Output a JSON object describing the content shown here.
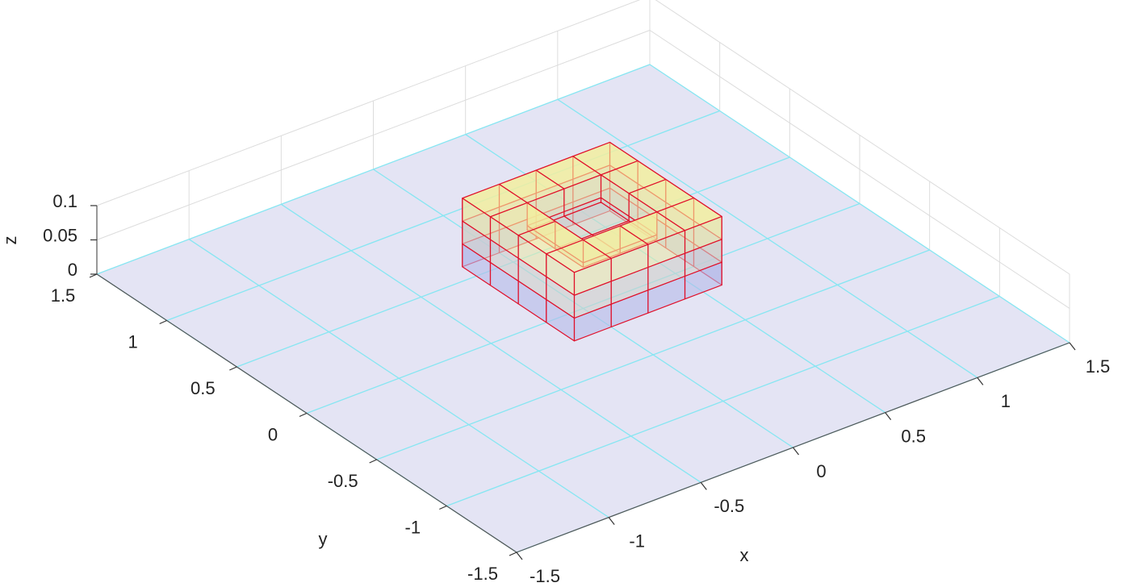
{
  "chart_data": {
    "type": "surface3d",
    "xlabel": "x",
    "ylabel": "y",
    "zlabel": "z",
    "xlim": [
      -1.5,
      1.5
    ],
    "ylim": [
      -1.5,
      1.5
    ],
    "zlim": [
      0,
      0.1
    ],
    "xticks": [
      -1.5,
      -1,
      -0.5,
      0,
      0.5,
      1,
      1.5
    ],
    "yticks": [
      -1.5,
      -1,
      -0.5,
      0,
      0.5,
      1,
      1.5
    ],
    "zticks": [
      0,
      0.05,
      0.1
    ],
    "grid": true,
    "plate": {
      "x": [
        -1.5,
        -1,
        -0.5,
        0,
        0.5,
        1,
        1.5
      ],
      "y": [
        -1.5,
        -1,
        -0.5,
        0,
        0.5,
        1,
        1.5
      ],
      "z": 0,
      "color": "#e4e4f4",
      "edge_color": "#86e6f2"
    },
    "box": {
      "x": [
        -0.2,
        0,
        0.2,
        0.4,
        0.6
      ],
      "y": [
        -0.2,
        0,
        0.2,
        0.4,
        0.6
      ],
      "z": [
        [
          0.1,
          0.1,
          0.1,
          0.1
        ],
        [
          0.1,
          0.06,
          0.06,
          0.1
        ],
        [
          0.1,
          0.06,
          0.06,
          0.1
        ],
        [
          0.1,
          0.1,
          0.1,
          0.1
        ]
      ],
      "colormap": [
        "#a9b0f7",
        "#f6f29a"
      ],
      "edge_color": "#e0102a"
    }
  }
}
